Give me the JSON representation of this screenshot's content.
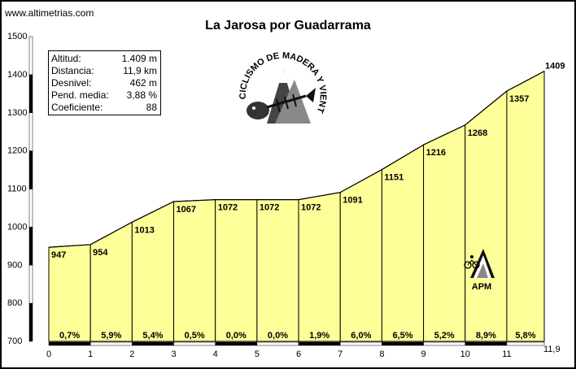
{
  "site": "www.altimetrias.com",
  "stats": [
    {
      "label": "Altitud:",
      "value": "1.409 m"
    },
    {
      "label": "Distancia:",
      "value": "11,9 km"
    },
    {
      "label": "Desnivel:",
      "value": "462 m"
    },
    {
      "label": "Pend. media:",
      "value": "3,88 %"
    },
    {
      "label": "Coeficiente:",
      "value": "88"
    }
  ],
  "logo": {
    "text": "CICLISMO DE MADERA Y VIENTO"
  },
  "apm_label": "APM",
  "chart_data": {
    "type": "area",
    "title": "La Jarosa por Guadarrama",
    "x": [
      0,
      1,
      2,
      3,
      4,
      5,
      6,
      7,
      8,
      9,
      10,
      11,
      11.9
    ],
    "elevations": [
      947,
      954,
      1013,
      1067,
      1072,
      1072,
      1072,
      1091,
      1151,
      1216,
      1268,
      1357,
      1409
    ],
    "elevation_labels": [
      "947",
      "954",
      "1013",
      "1067",
      "1072",
      "1072",
      "1072",
      "1091",
      "1151",
      "1216",
      "1268",
      "1357",
      "1409"
    ],
    "gradients": [
      "0,7%",
      "5,9%",
      "5,4%",
      "0,5%",
      "0,0%",
      "0,0%",
      "1,9%",
      "6,0%",
      "6,5%",
      "5,2%",
      "8,9%",
      "5,8%"
    ],
    "x_tick_labels": [
      "0",
      "1",
      "2",
      "3",
      "4",
      "5",
      "6",
      "7",
      "8",
      "9",
      "10",
      "11",
      "11,9"
    ],
    "y_tick_labels": [
      "700",
      "800",
      "900",
      "1000",
      "1100",
      "1200",
      "1300",
      "1400",
      "1500"
    ],
    "y_ticks": [
      700,
      800,
      900,
      1000,
      1100,
      1200,
      1300,
      1400,
      1500
    ],
    "xlim": [
      0,
      11.9
    ],
    "ylim": [
      700,
      1500
    ],
    "fill_color": "#ffff99",
    "line_color": "#000000"
  }
}
